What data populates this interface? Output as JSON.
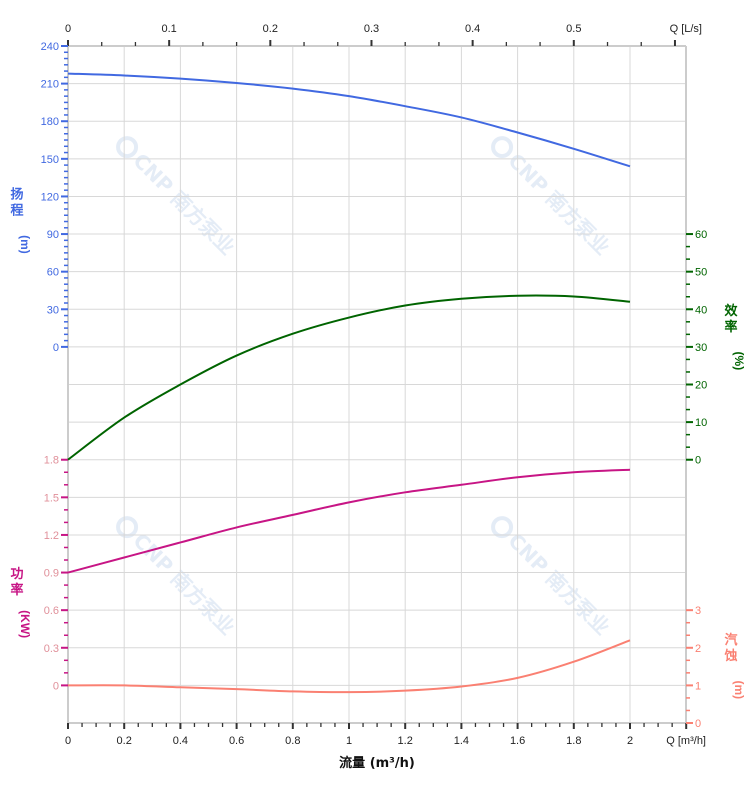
{
  "chart_data": {
    "type": "line",
    "title": "",
    "xlabel": "流量 (m³/h)",
    "x_unit_label": "Q [m³/h]",
    "x_top_unit_label": "Q [L/s]",
    "xlim": [
      0,
      2.2
    ],
    "x_ticks": [
      "0",
      "0.2",
      "0.4",
      "0.6",
      "0.8",
      "1",
      "1.2",
      "1.4",
      "1.6",
      "1.8",
      "2"
    ],
    "x_top_ticks": [
      "0",
      "0.1",
      "0.2",
      "0.3",
      "0.4",
      "0.5"
    ],
    "grid": true,
    "watermark": "CNP 南方泵业",
    "x": [
      0,
      0.2,
      0.4,
      0.6,
      0.8,
      1.0,
      1.2,
      1.4,
      1.6,
      1.8,
      2.0
    ],
    "axes": {
      "head": {
        "label_chars": [
          "扬",
          "程"
        ],
        "unit": "(m)",
        "side": "left",
        "range": [
          0,
          240
        ],
        "ticks": [
          "0",
          "30",
          "60",
          "90",
          "120",
          "150",
          "180",
          "210",
          "240"
        ],
        "color": "#4169e1"
      },
      "power": {
        "label_chars": [
          "功",
          "率"
        ],
        "unit": "(KW)",
        "side": "left",
        "range": [
          0,
          1.8
        ],
        "ticks": [
          "0",
          "0.3",
          "0.6",
          "0.9",
          "1.2",
          "1.5",
          "1.8"
        ],
        "color": "#c71585",
        "tick_text_color": "#e0909a"
      },
      "efficiency": {
        "label_chars": [
          "效",
          "率"
        ],
        "unit": "(%)",
        "side": "right",
        "range": [
          0,
          60
        ],
        "ticks": [
          "0",
          "10",
          "20",
          "30",
          "40",
          "50",
          "60"
        ],
        "color": "#006400"
      },
      "npsh": {
        "label_chars": [
          "汽",
          "蚀"
        ],
        "unit": "(m)",
        "side": "right",
        "range": [
          0,
          3
        ],
        "ticks": [
          "0",
          "1",
          "2",
          "3"
        ],
        "color": "#fa8072"
      }
    },
    "series": [
      {
        "axis": "head",
        "values": [
          218,
          216.5,
          214,
          210.5,
          206,
          200,
          192,
          183,
          171,
          158,
          144
        ]
      },
      {
        "axis": "efficiency",
        "values": [
          0,
          11.2,
          20,
          27.7,
          33.5,
          37.8,
          41,
          42.8,
          43.6,
          43.4,
          42
        ]
      },
      {
        "axis": "power",
        "values": [
          0.9,
          1.02,
          1.14,
          1.26,
          1.36,
          1.46,
          1.54,
          1.6,
          1.66,
          1.7,
          1.72
        ]
      },
      {
        "axis": "npsh",
        "values": [
          1.0,
          1.0,
          0.95,
          0.9,
          0.84,
          0.82,
          0.86,
          0.97,
          1.2,
          1.63,
          2.2
        ]
      }
    ]
  }
}
